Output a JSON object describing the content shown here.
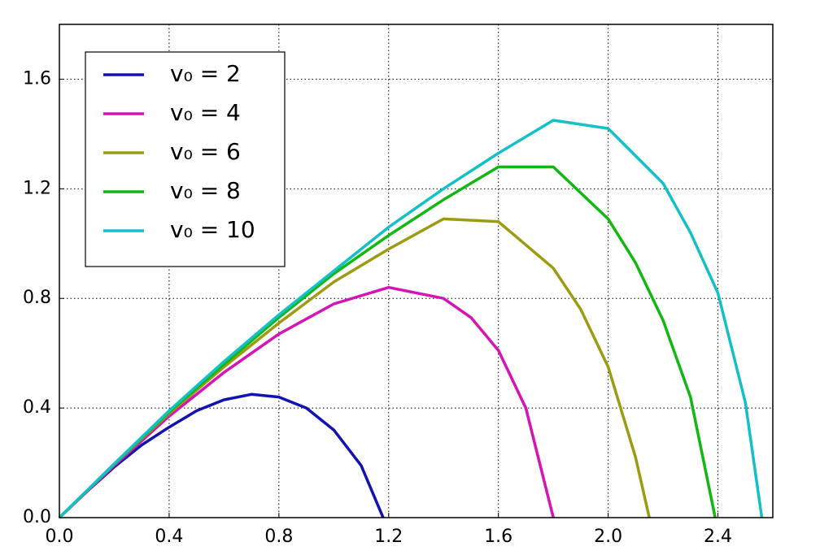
{
  "chart_data": {
    "type": "line",
    "xlim": [
      0,
      2.6
    ],
    "ylim": [
      0,
      1.8
    ],
    "xticks": [
      {
        "value": 0,
        "label": "0.0"
      },
      0.4,
      0.8,
      1.2,
      1.6,
      {
        "value": 2,
        "label": "2.0"
      },
      2.4
    ],
    "yticks": [
      {
        "value": 0,
        "label": "0.0"
      },
      0.4,
      0.8,
      1.2,
      1.6
    ],
    "grid": true,
    "legend": "upper left",
    "series": [
      {
        "name": "v₀ = 2",
        "color": "#1212b0",
        "x": [
          0,
          0.1,
          0.2,
          0.3,
          0.4,
          0.5,
          0.6,
          0.7,
          0.8,
          0.9,
          1.0,
          1.1,
          1.18
        ],
        "values": [
          0,
          0.095,
          0.185,
          0.265,
          0.33,
          0.39,
          0.43,
          0.45,
          0.44,
          0.4,
          0.32,
          0.19,
          0
        ]
      },
      {
        "name": "v₀ = 4",
        "color": "#d414b4",
        "x": [
          0,
          0.2,
          0.4,
          0.6,
          0.8,
          1.0,
          1.2,
          1.4,
          1.5,
          1.6,
          1.7,
          1.8
        ],
        "values": [
          0,
          0.19,
          0.37,
          0.53,
          0.67,
          0.78,
          0.84,
          0.8,
          0.73,
          0.61,
          0.4,
          0
        ]
      },
      {
        "name": "v₀ = 6",
        "color": "#9c9c12",
        "x": [
          0,
          0.2,
          0.4,
          0.6,
          0.8,
          1.0,
          1.2,
          1.4,
          1.6,
          1.8,
          1.9,
          2.0,
          2.1,
          2.15
        ],
        "values": [
          0,
          0.195,
          0.38,
          0.55,
          0.71,
          0.86,
          0.98,
          1.09,
          1.08,
          0.91,
          0.76,
          0.55,
          0.22,
          0
        ]
      },
      {
        "name": "v₀ = 8",
        "color": "#12b812",
        "x": [
          0,
          0.2,
          0.4,
          0.6,
          0.8,
          1.0,
          1.2,
          1.4,
          1.6,
          1.8,
          2.0,
          2.1,
          2.2,
          2.3,
          2.39
        ],
        "values": [
          0,
          0.195,
          0.385,
          0.56,
          0.73,
          0.89,
          1.03,
          1.16,
          1.28,
          1.28,
          1.09,
          0.93,
          0.72,
          0.44,
          0
        ]
      },
      {
        "name": "v₀ = 10",
        "color": "#14c0c8",
        "x": [
          0,
          0.2,
          0.4,
          0.6,
          0.8,
          1.0,
          1.2,
          1.4,
          1.6,
          1.8,
          2.0,
          2.2,
          2.3,
          2.4,
          2.5,
          2.56
        ],
        "values": [
          0,
          0.197,
          0.39,
          0.57,
          0.74,
          0.9,
          1.06,
          1.2,
          1.33,
          1.45,
          1.42,
          1.22,
          1.04,
          0.82,
          0.42,
          0
        ]
      }
    ]
  }
}
